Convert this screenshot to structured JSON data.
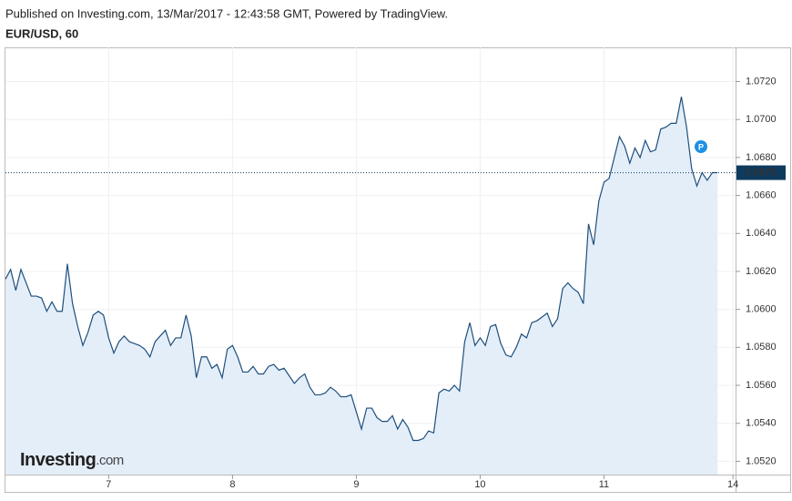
{
  "header": {
    "published": "Published on Investing.com, 13/Mar/2017 - 12:43:58 GMT, Powered by TradingView.",
    "symbol": "EUR/USD, 60"
  },
  "chart_data": {
    "type": "area",
    "x": [
      0,
      1,
      2,
      3,
      4,
      5,
      6,
      7,
      8,
      9,
      10,
      11,
      12,
      13,
      14,
      15,
      16,
      17,
      18,
      19,
      20,
      21,
      22,
      23,
      24,
      25,
      26,
      27,
      28,
      29,
      30,
      31,
      32,
      33,
      34,
      35,
      36,
      37,
      38,
      39,
      40,
      41,
      42,
      43,
      44,
      45,
      46,
      47,
      48,
      49,
      50,
      51,
      52,
      53,
      54,
      55,
      56,
      57,
      58,
      59,
      60,
      61,
      62,
      63,
      64,
      65,
      66,
      67,
      68,
      69,
      70,
      71,
      72,
      73,
      74,
      75,
      76,
      77,
      78,
      79,
      80,
      81,
      82,
      83,
      84,
      85,
      86,
      87,
      88,
      89,
      90,
      91,
      92,
      93,
      94,
      95,
      96,
      97,
      98,
      99,
      100,
      101,
      102,
      103,
      104,
      105,
      106,
      107,
      108,
      109,
      110,
      111,
      112,
      113,
      114,
      115,
      116,
      117,
      118,
      119,
      120,
      121,
      122,
      123,
      124,
      125,
      126,
      127,
      128,
      129,
      130,
      131,
      132,
      133,
      134,
      135,
      136,
      137,
      138
    ],
    "values": [
      1.0616,
      1.0621,
      1.061,
      1.0621,
      1.0614,
      1.0607,
      1.0607,
      1.0606,
      1.0599,
      1.0604,
      1.0599,
      1.0599,
      1.0624,
      1.0603,
      1.0591,
      1.0581,
      1.0588,
      1.0597,
      1.0599,
      1.0597,
      1.0585,
      1.0577,
      1.0583,
      1.0586,
      1.0583,
      1.0582,
      1.0581,
      1.0579,
      1.0575,
      1.0583,
      1.0586,
      1.0589,
      1.0581,
      1.0585,
      1.0585,
      1.0597,
      1.0586,
      1.0564,
      1.0575,
      1.0575,
      1.0569,
      1.0571,
      1.0564,
      1.0579,
      1.0581,
      1.0575,
      1.0567,
      1.0567,
      1.057,
      1.0566,
      1.0566,
      1.057,
      1.0571,
      1.0568,
      1.0569,
      1.0565,
      1.0561,
      1.0564,
      1.0566,
      1.0559,
      1.0555,
      1.0555,
      1.0556,
      1.0559,
      1.0557,
      1.0554,
      1.0554,
      1.0555,
      1.0546,
      1.0537,
      1.0548,
      1.0548,
      1.0543,
      1.0541,
      1.0541,
      1.0544,
      1.0537,
      1.0542,
      1.0538,
      1.0531,
      1.0531,
      1.0532,
      1.0536,
      1.0535,
      1.0556,
      1.0558,
      1.0557,
      1.056,
      1.0557,
      1.0583,
      1.0593,
      1.0581,
      1.0585,
      1.0581,
      1.0591,
      1.0592,
      1.0582,
      1.0576,
      1.0575,
      1.058,
      1.0587,
      1.0585,
      1.0593,
      1.0594,
      1.0596,
      1.0598,
      1.0591,
      1.0595,
      1.0611,
      1.0614,
      1.0611,
      1.0609,
      1.0603,
      1.0645,
      1.0634,
      1.0657,
      1.0667,
      1.0669,
      1.068,
      1.0691,
      1.0686,
      1.0677,
      1.0685,
      1.068,
      1.0689,
      1.0683,
      1.0684,
      1.0695,
      1.0696,
      1.0698,
      1.0698,
      1.0712,
      1.0696,
      1.0674,
      1.0665,
      1.0672,
      1.0668,
      1.0672,
      1.0672
    ],
    "color": "#1e4f7c",
    "fill_color": "#e4eef9",
    "xlim": [
      0,
      141.5
    ],
    "xticks": [
      {
        "value": 20,
        "label": "7"
      },
      {
        "value": 44,
        "label": "8"
      },
      {
        "value": 68,
        "label": "9"
      },
      {
        "value": 92,
        "label": "10"
      },
      {
        "value": 116,
        "label": "11"
      },
      {
        "value": 141,
        "label": "14"
      }
    ],
    "ylim": [
      1.0513,
      1.0738
    ],
    "yticks": [
      {
        "value": 1.052,
        "label": "1.0520"
      },
      {
        "value": 1.054,
        "label": "1.0540"
      },
      {
        "value": 1.056,
        "label": "1.0560"
      },
      {
        "value": 1.058,
        "label": "1.0580"
      },
      {
        "value": 1.06,
        "label": "1.0600"
      },
      {
        "value": 1.062,
        "label": "1.0620"
      },
      {
        "value": 1.064,
        "label": "1.0640"
      },
      {
        "value": 1.066,
        "label": "1.0660"
      },
      {
        "value": 1.068,
        "label": "1.0680"
      },
      {
        "value": 1.07,
        "label": "1.0700"
      },
      {
        "value": 1.072,
        "label": "1.0720"
      }
    ],
    "grid": true,
    "last_price": 1.0672,
    "marker_label": "P",
    "watermark": {
      "brand": "Investing",
      "suffix": ".com"
    }
  }
}
